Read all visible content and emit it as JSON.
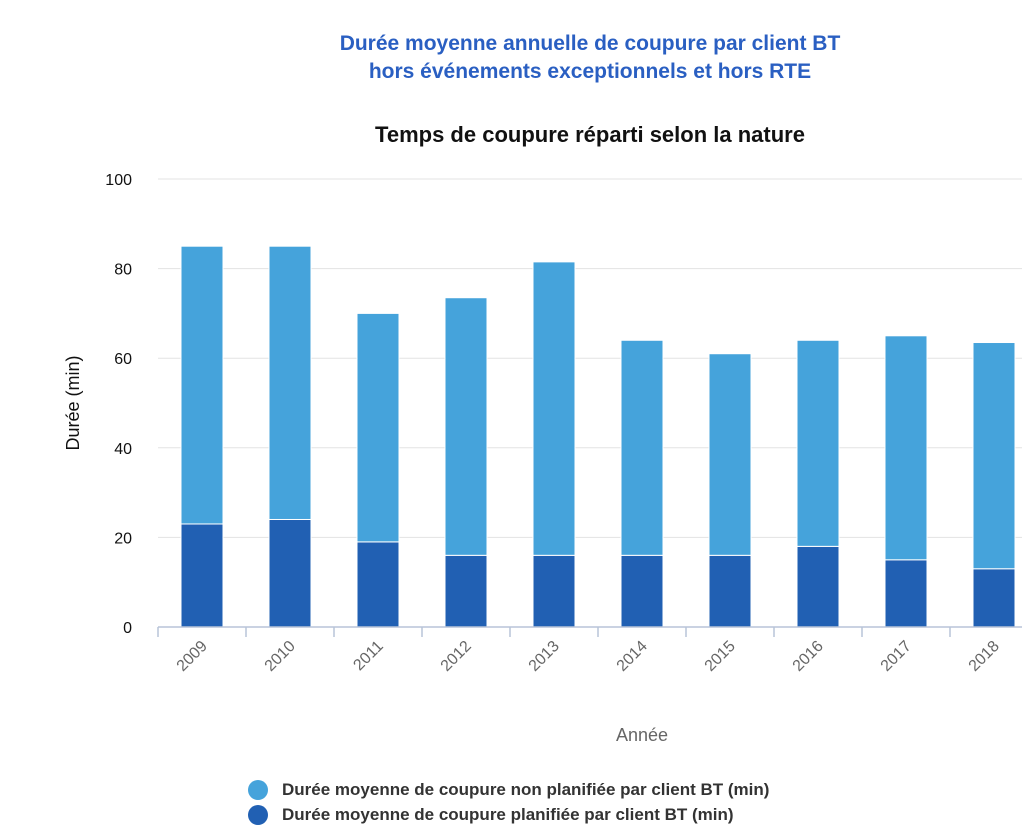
{
  "title": {
    "line1": "Durée moyenne annuelle de coupure par client BT",
    "line2": "hors événements exceptionnels et hors RTE"
  },
  "chart_data": {
    "type": "bar",
    "stacked": true,
    "subtitle": "Temps de coupure réparti selon la nature",
    "xlabel": "Année",
    "ylabel": "Durée (min)",
    "ylim": [
      0,
      100
    ],
    "yticks": [
      0,
      20,
      40,
      60,
      80,
      100
    ],
    "grid": true,
    "legend_position": "bottom",
    "categories": [
      "2009",
      "2010",
      "2011",
      "2012",
      "2013",
      "2014",
      "2015",
      "2016",
      "2017",
      "2018"
    ],
    "series": [
      {
        "name": "Durée moyenne de coupure planifiée par client BT (min)",
        "color": "#2160b3",
        "values": [
          23,
          24,
          19,
          16,
          16,
          16,
          16,
          18,
          15,
          13
        ]
      },
      {
        "name": "Durée moyenne de coupure non planifiée par client BT (min)",
        "color": "#45a3db",
        "values": [
          62,
          61,
          51,
          57.5,
          65.5,
          48,
          45,
          46,
          50,
          50.5
        ]
      }
    ],
    "legend_order": [
      1,
      0
    ]
  }
}
